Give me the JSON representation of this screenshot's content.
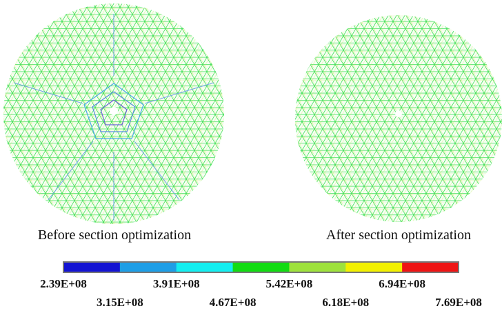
{
  "panels": [
    {
      "caption": "Before section optimization"
    },
    {
      "caption": "After section optimization"
    }
  ],
  "legend": {
    "colors": [
      "#1414d2",
      "#1e9ee6",
      "#14eef0",
      "#12dc12",
      "#9ee23c",
      "#f2f000",
      "#ee1414"
    ],
    "labels": [
      "2.39E+08",
      "3.15E+08",
      "3.91E+08",
      "4.67E+08",
      "5.42E+08",
      "6.18E+08",
      "6.94E+08",
      "7.69E+08"
    ]
  }
}
